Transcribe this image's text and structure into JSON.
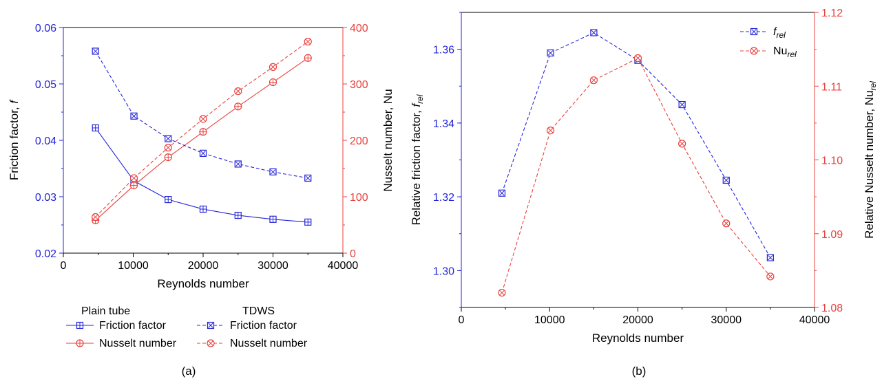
{
  "colors": {
    "blue": "#2323d9",
    "red": "#e8403d",
    "axis": "#000000"
  },
  "chart_data": [
    {
      "panel_label": "(a)",
      "type": "line",
      "xlabel": "Reynolds number",
      "ylabel": "Friction factor, f",
      "ylabel_main": "Friction factor, ",
      "ylabel_italic": "f",
      "y2label": "Nusselt number, Nu",
      "xlim": [
        0,
        40000
      ],
      "ylim": [
        0.02,
        0.06
      ],
      "y2lim": [
        0,
        400
      ],
      "xticks": [
        "0",
        "10000",
        "20000",
        "30000",
        "40000"
      ],
      "yticks": [
        "0.02",
        "0.03",
        "0.04",
        "0.05",
        "0.06"
      ],
      "y2ticks": [
        "0",
        "100",
        "200",
        "300",
        "400"
      ],
      "x": [
        4600,
        10100,
        15000,
        20000,
        25000,
        30000,
        35000
      ],
      "series": [
        {
          "group": "Plain tube",
          "name": "Friction factor",
          "axis": "left",
          "color": "blue",
          "dashed": false,
          "marker": "square-plus",
          "values": [
            0.0422,
            0.0328,
            0.0295,
            0.0278,
            0.0267,
            0.026,
            0.0255
          ]
        },
        {
          "group": "Plain tube",
          "name": "Nusselt number",
          "axis": "right",
          "color": "red",
          "dashed": false,
          "marker": "circle-plus",
          "values": [
            58,
            120,
            170,
            215,
            260,
            303,
            346
          ]
        },
        {
          "group": "TDWS",
          "name": "Friction factor",
          "axis": "left",
          "color": "blue",
          "dashed": true,
          "marker": "square-x",
          "values": [
            0.0558,
            0.0443,
            0.0403,
            0.0377,
            0.0358,
            0.0344,
            0.0333
          ]
        },
        {
          "group": "TDWS",
          "name": "Nusselt number",
          "axis": "right",
          "color": "red",
          "dashed": true,
          "marker": "circle-x",
          "values": [
            64,
            133,
            187,
            238,
            287,
            330,
            375
          ]
        }
      ],
      "legend_groups": [
        "Plain tube",
        "TDWS"
      ]
    },
    {
      "panel_label": "(b)",
      "type": "line",
      "xlabel": "Reynolds number",
      "ylabel": "Relative friction factor, f_rel",
      "ylabel_main": "Relative friction factor, ",
      "ylabel_italic": "f",
      "ylabel_sub": "rel",
      "y2label": "Relative Nusselt number, Nu_rel",
      "y2label_main": "Relative Nusselt number, Nu",
      "y2label_sub": "rel",
      "xlim": [
        0,
        40000
      ],
      "ylim": [
        1.29,
        1.37
      ],
      "y2lim": [
        1.08,
        1.12
      ],
      "xticks": [
        "0",
        "10000",
        "20000",
        "30000",
        "40000"
      ],
      "yticks": [
        "1.30",
        "1.32",
        "1.34",
        "1.36"
      ],
      "yticks_values": [
        1.3,
        1.32,
        1.34,
        1.36
      ],
      "y2ticks": [
        "1.08",
        "1.09",
        "1.10",
        "1.11",
        "1.12"
      ],
      "x": [
        4600,
        10100,
        15000,
        20000,
        25000,
        30000,
        35000
      ],
      "series": [
        {
          "name_main": "f",
          "name_sub": "rel",
          "axis": "left",
          "color": "blue",
          "dashed": true,
          "marker": "square-x",
          "values": [
            1.321,
            1.359,
            1.3645,
            1.357,
            1.345,
            1.3245,
            1.3035
          ]
        },
        {
          "name_main": "Nu",
          "name_sub": "rel",
          "axis": "right",
          "color": "red",
          "dashed": true,
          "marker": "circle-x",
          "values": [
            1.082,
            1.104,
            1.1108,
            1.1138,
            1.1022,
            1.0914,
            1.0842
          ]
        }
      ]
    }
  ]
}
